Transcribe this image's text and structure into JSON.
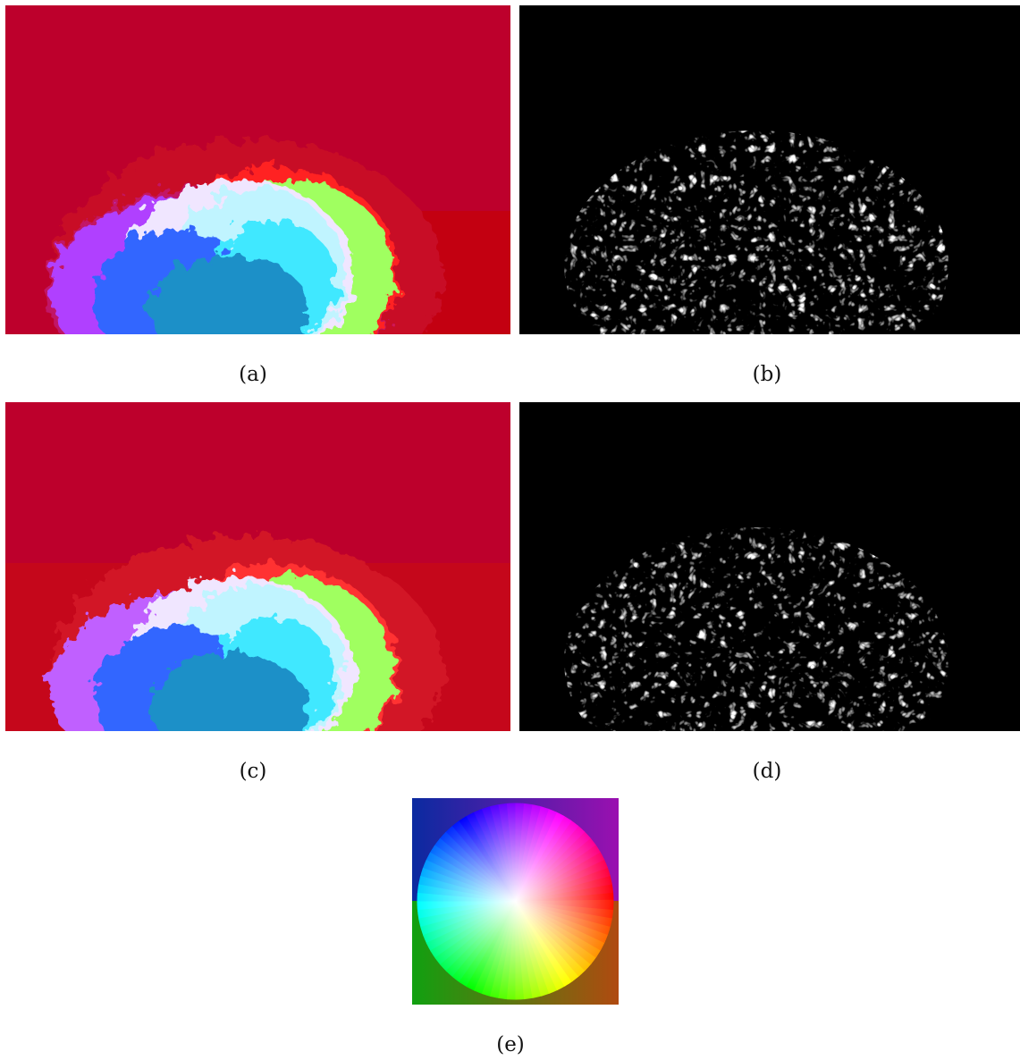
{
  "figure": {
    "panels": [
      {
        "id": "a",
        "kind": "optical-flow-estimate",
        "caption": "(a)"
      },
      {
        "id": "b",
        "kind": "error-map",
        "caption": "(b)"
      },
      {
        "id": "c",
        "kind": "optical-flow-estimate",
        "caption": "(c)"
      },
      {
        "id": "d",
        "kind": "error-map",
        "caption": "(d)"
      },
      {
        "id": "e",
        "kind": "color-wheel-key",
        "caption": "(e)"
      }
    ]
  },
  "colors": {
    "flow_background": "#bd002c",
    "flow_background_right": "#c30011",
    "error_background": "#000000",
    "page_background": "#ffffff"
  }
}
